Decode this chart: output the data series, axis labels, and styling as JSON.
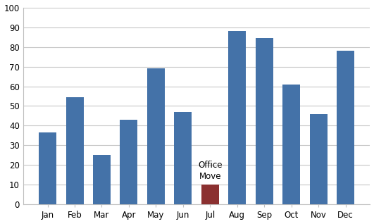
{
  "categories": [
    "Jan",
    "Feb",
    "Mar",
    "Apr",
    "May",
    "Jun",
    "Jul",
    "Aug",
    "Sep",
    "Oct",
    "Nov",
    "Dec"
  ],
  "values": [
    36.5,
    54.5,
    25,
    43,
    69,
    47,
    10,
    88,
    84.5,
    61,
    46,
    78
  ],
  "bar_colors": [
    "#4472a8",
    "#4472a8",
    "#4472a8",
    "#4472a8",
    "#4472a8",
    "#4472a8",
    "#8b3030",
    "#4472a8",
    "#4472a8",
    "#4472a8",
    "#4472a8",
    "#4472a8"
  ],
  "annotation_index": 6,
  "annotation_text": "Office\nMove",
  "ylim": [
    0,
    100
  ],
  "yticks": [
    0,
    10,
    20,
    30,
    40,
    50,
    60,
    70,
    80,
    90,
    100
  ],
  "background_color": "#ffffff",
  "plot_bg_color": "#ffffff",
  "grid_color": "#c8c8c8",
  "outer_border_color": "#c0c0c0",
  "bar_width": 0.65,
  "annotation_fontsize": 8.5,
  "tick_fontsize": 8.5,
  "figsize": [
    5.31,
    3.18
  ],
  "dpi": 100
}
